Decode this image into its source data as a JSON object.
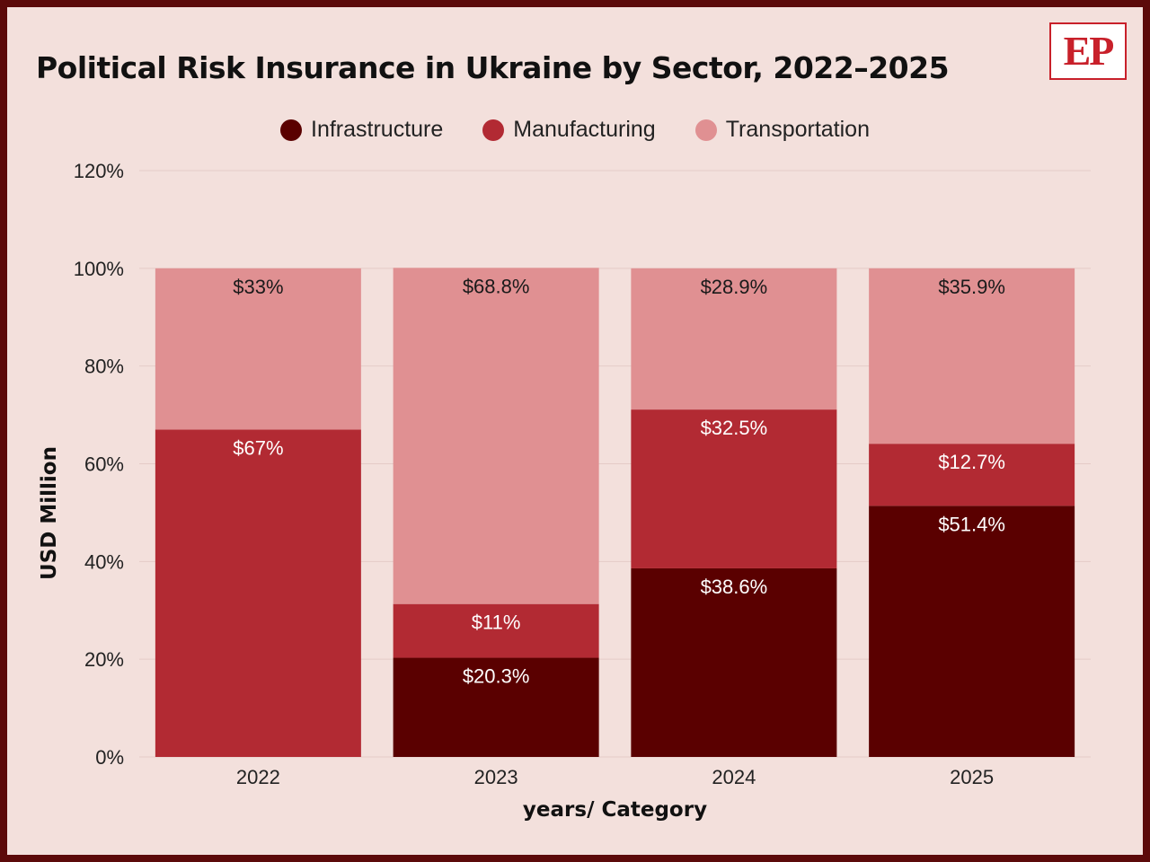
{
  "title": "Political Risk Insurance in Ukraine by Sector, 2022–2025",
  "logo": "EP",
  "colors": {
    "Infrastructure": "#5a0000",
    "Manufacturing": "#b22a33",
    "Transportation": "#e09092",
    "grid": "#e5cbc7",
    "background": "#f3e0dc",
    "frame": "#5c0a0a"
  },
  "chart_data": {
    "type": "bar",
    "stacked": true,
    "title": "Political Risk Insurance in Ukraine by Sector, 2022–2025",
    "xlabel": "years/ Category",
    "ylabel": "USD Million",
    "ylim": [
      0,
      120
    ],
    "yticks": [
      "0%",
      "20%",
      "40%",
      "60%",
      "80%",
      "100%",
      "120%"
    ],
    "grid": true,
    "legend_position": "top-center",
    "categories": [
      "2022",
      "2023",
      "2024",
      "2025"
    ],
    "series": [
      {
        "name": "Infrastructure",
        "values": [
          0,
          20.3,
          38.6,
          51.4
        ],
        "labels": [
          "",
          "$20.3%",
          "$38.6%",
          "$51.4%"
        ]
      },
      {
        "name": "Manufacturing",
        "values": [
          67,
          11,
          32.5,
          12.7
        ],
        "labels": [
          "$67%",
          "$11%",
          "$32.5%",
          "$12.7%"
        ]
      },
      {
        "name": "Transportation",
        "values": [
          33,
          68.8,
          28.9,
          35.9
        ],
        "labels": [
          "$33%",
          "$68.8%",
          "$28.9%",
          "$35.9%"
        ]
      }
    ]
  }
}
